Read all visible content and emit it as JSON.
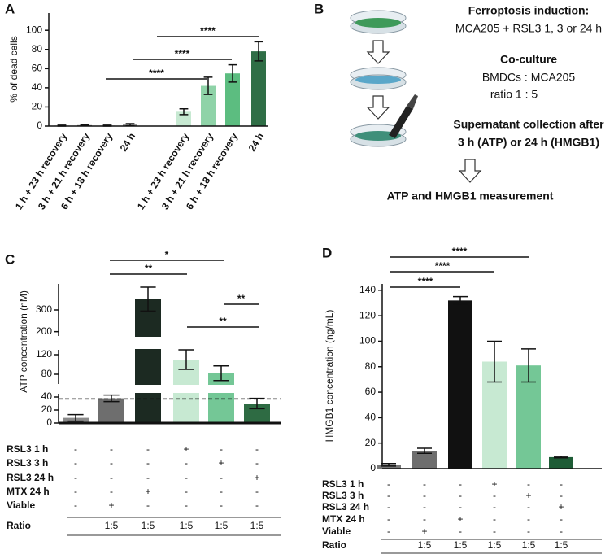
{
  "chart_data": [
    {
      "type": "bar",
      "panel": "A",
      "ylabel": "% of dead cells",
      "categories": [
        "1 h + 23 h recovery",
        "3 h + 21 h recovery",
        "6 h + 18 h recovery",
        "24 h",
        "1 h + 23 h recovery",
        "3 h + 21 h recovery",
        "6 h + 18 h recovery",
        "24 h"
      ],
      "values": [
        0.5,
        1,
        0.5,
        1.5,
        15,
        42,
        55,
        78
      ],
      "errors": [
        0.5,
        0.5,
        0.5,
        1,
        3,
        9,
        9,
        10
      ],
      "colors": [
        "#7a7a7a",
        "#7a7a7a",
        "#7a7a7a",
        "#7a7a7a",
        "#c7e9d2",
        "#8fd3a8",
        "#5cbd80",
        "#2f6e46"
      ],
      "ylim": [
        0,
        118
      ],
      "yticks": [
        0,
        20,
        40,
        60,
        80,
        100
      ],
      "annotations": [
        "****",
        "****",
        "****"
      ]
    },
    {
      "type": "bar",
      "panel": "C",
      "ylabel": "ATP concentration (nM)",
      "values": [
        8,
        38,
        350,
        110,
        82,
        30
      ],
      "errors": [
        5,
        5,
        55,
        20,
        15,
        8
      ],
      "colors": [
        "#8a8a8a",
        "#6e6e6e",
        "#1c2a22",
        "#c7e9d2",
        "#74c796",
        "#2e6b43"
      ],
      "y_segments": [
        {
          "ylim": [
            0,
            45
          ],
          "yticks": [
            0,
            20,
            40
          ]
        },
        {
          "ylim": [
            60,
            130
          ],
          "yticks": [
            80,
            120
          ]
        },
        {
          "ylim": [
            180,
            420
          ],
          "yticks": [
            200,
            300
          ]
        }
      ],
      "reference_line": 37,
      "conditions": {
        "row_labels": [
          "RSL3 1 h",
          "RSL3 3 h",
          "RSL3 24 h",
          "MTX 24 h",
          "Viable",
          "Ratio"
        ],
        "rows": [
          [
            "-",
            "-",
            "-",
            "+",
            "-",
            "-"
          ],
          [
            "-",
            "-",
            "-",
            "-",
            "+",
            "-"
          ],
          [
            "-",
            "-",
            "-",
            "-",
            "-",
            "+"
          ],
          [
            "-",
            "-",
            "+",
            "-",
            "-",
            "-"
          ],
          [
            "-",
            "+",
            "-",
            "-",
            "-",
            "-"
          ],
          [
            null,
            "1:5",
            "1:5",
            "1:5",
            "1:5",
            "1:5"
          ]
        ]
      },
      "annotations": [
        "*",
        "**",
        "**",
        "**"
      ]
    },
    {
      "type": "bar",
      "panel": "D",
      "ylabel": "HMGB1 concentration (ng/mL)",
      "values": [
        3,
        14,
        132,
        84,
        81,
        9
      ],
      "errors": [
        1,
        2,
        3,
        16,
        13,
        0.5
      ],
      "colors": [
        "#777777",
        "#6e6e6e",
        "#111111",
        "#c7e9d2",
        "#74c796",
        "#1e5c36"
      ],
      "ylim": [
        0,
        145
      ],
      "yticks": [
        0,
        20,
        40,
        60,
        80,
        100,
        120,
        140
      ],
      "conditions": {
        "row_labels": [
          "RSL3 1 h",
          "RSL3 3 h",
          "RSL3 24 h",
          "MTX 24 h",
          "Viable",
          "Ratio"
        ],
        "rows": [
          [
            "-",
            "-",
            "-",
            "+",
            "-",
            "-"
          ],
          [
            "-",
            "-",
            "-",
            "-",
            "+",
            "-"
          ],
          [
            "-",
            "-",
            "-",
            "-",
            "-",
            "+"
          ],
          [
            "-",
            "-",
            "+",
            "-",
            "-",
            "-"
          ],
          [
            "-",
            "+",
            "-",
            "-",
            "-",
            "-"
          ],
          [
            null,
            "1:5",
            "1:5",
            "1:5",
            "1:5",
            "1:5"
          ]
        ]
      },
      "annotations": [
        "****",
        "****",
        "****"
      ]
    }
  ],
  "diagram_b": {
    "panel": "B",
    "steps": [
      {
        "title": "Ferroptosis induction:",
        "lines": [
          "MCA205 + RSL3 1, 3 or 24 h"
        ]
      },
      {
        "title": "Co-culture",
        "lines": [
          "BMDCs : MCA205",
          "ratio 1 : 5"
        ]
      },
      {
        "title": "Supernatant collection after",
        "lines": [
          "3 h (ATP) or 24 h (HMGB1)"
        ]
      }
    ],
    "result": "ATP and HMGB1 measurement"
  }
}
